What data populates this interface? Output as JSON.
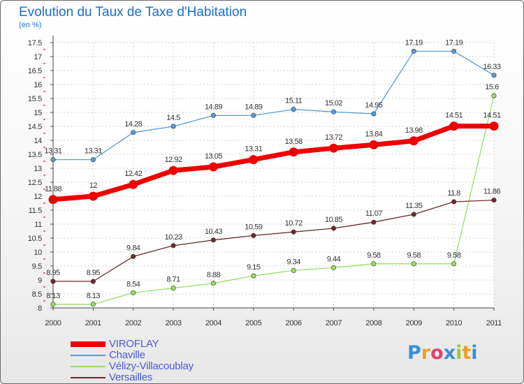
{
  "header": {
    "title": "Evolution du Taux de Taxe d'Habitation",
    "unit": "(en %)"
  },
  "chart_data": {
    "type": "line",
    "title": "Evolution du Taux de Taxe d'Habitation",
    "ylabel": "(en %)",
    "xlabel": "",
    "ylim": [
      8,
      17.5
    ],
    "grid": true,
    "legend_position": "bottom-left",
    "x": [
      "2000",
      "2001",
      "2002",
      "2003",
      "2004",
      "2005",
      "2006",
      "2007",
      "2008",
      "2009",
      "2010",
      "2011"
    ],
    "y_ticks": [
      "8",
      "8.5",
      "9",
      "9.5",
      "10",
      "10.5",
      "11",
      "11.5",
      "12",
      "12.5",
      "13",
      "13.5",
      "14",
      "14.5",
      "15",
      "15.5",
      "16",
      "16.5",
      "17",
      "17.5"
    ],
    "series": [
      {
        "name": "VIROFLAY",
        "color": "#ee0000",
        "values": [
          11.88,
          12,
          12.42,
          12.92,
          13.05,
          13.31,
          13.58,
          13.72,
          13.84,
          13.98,
          14.51,
          14.51
        ],
        "labels": [
          "11.88",
          "12",
          "12.42",
          "12.92",
          "13.05",
          "13.31",
          "13.58",
          "13.72",
          "13.84",
          "13.98",
          "14.51",
          "14.51"
        ]
      },
      {
        "name": "Chaville",
        "color": "#5b9bd5",
        "values": [
          13.31,
          13.31,
          14.28,
          14.5,
          14.89,
          14.89,
          15.11,
          15.02,
          14.95,
          17.19,
          17.19,
          16.33
        ],
        "labels": [
          "13.31",
          "13.31",
          "14.28",
          "14.5",
          "14.89",
          "14.89",
          "15.11",
          "15.02",
          "14.95",
          "17.19",
          "17.19",
          "16.33"
        ]
      },
      {
        "name": "Vélizy-Villacoublay",
        "color": "#99dd66",
        "values": [
          8.13,
          8.13,
          8.54,
          8.71,
          8.88,
          9.15,
          9.34,
          9.44,
          9.58,
          9.58,
          9.58,
          15.6
        ],
        "labels": [
          "8.13",
          "8.13",
          "8.54",
          "8.71",
          "8.88",
          "9.15",
          "9.34",
          "9.44",
          "9.58",
          "9.58",
          "9.58",
          "15.6"
        ]
      },
      {
        "name": "Versailles",
        "color": "#6b2a2a",
        "values": [
          8.95,
          8.95,
          9.84,
          10.23,
          10.43,
          10.59,
          10.72,
          10.85,
          11.07,
          11.35,
          11.8,
          11.86
        ],
        "labels": [
          "8.95",
          "8.95",
          "9.84",
          "10.23",
          "10.43",
          "10.59",
          "10.72",
          "10.85",
          "11.07",
          "11.35",
          "11.8",
          "11.86"
        ]
      }
    ]
  },
  "logo": {
    "letters": [
      "P",
      "r",
      "o",
      "x",
      "i",
      "t",
      "i"
    ],
    "colors": [
      "#3a8fd9",
      "#f0a020",
      "#e84070",
      "#3a8fd9",
      "#9acb3c",
      "#f0a020",
      "#3a8fd9"
    ]
  }
}
